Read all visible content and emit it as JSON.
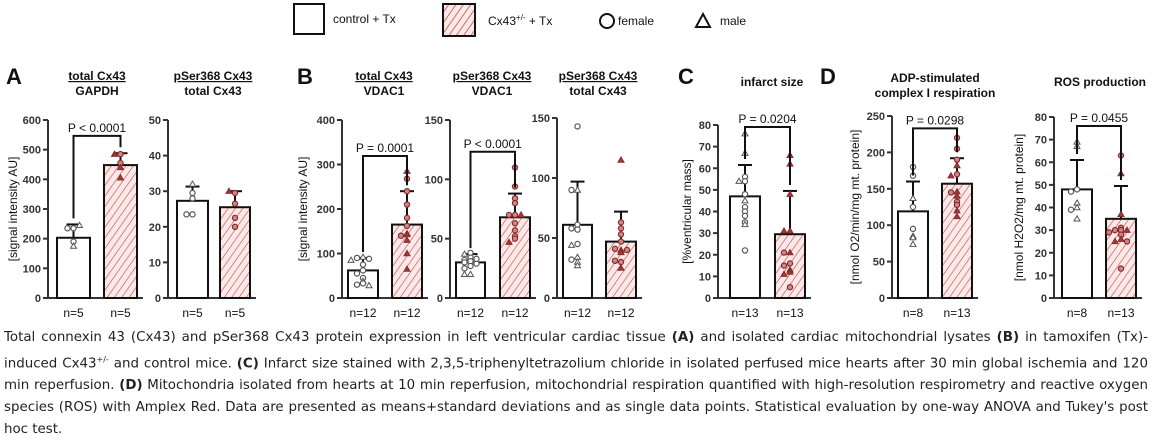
{
  "legend": {
    "items": [
      {
        "label": "control  + Tx",
        "symbol": "open-square"
      },
      {
        "label": "Cx43",
        "sup": "+/-",
        "suffix": " + Tx",
        "symbol": "hatched-square"
      },
      {
        "label": "female",
        "symbol": "circle"
      },
      {
        "label": "male",
        "symbol": "triangle"
      }
    ]
  },
  "colors": {
    "control_fill": "#ffffff",
    "cx43_fill": "#fbe9e9",
    "hatch": "#c0392b",
    "female_point_control": "#444444",
    "point_cx43": "#8b2a2a",
    "axis": "#333333"
  },
  "panel_letters": [
    "A",
    "B",
    "C",
    "D"
  ],
  "chart_data": [
    {
      "id": "A1",
      "panel": "A",
      "type": "bar",
      "title_numerator": "total Cx43",
      "title_denominator": "GAPDH",
      "ylabel": "[signal intensity AU]",
      "ylim": [
        0,
        600
      ],
      "yticks": [
        0,
        100,
        200,
        300,
        400,
        500,
        600
      ],
      "categories": [
        "control + Tx",
        "Cx43+/- + Tx"
      ],
      "means": [
        203,
        448
      ],
      "sd": [
        45,
        40
      ],
      "n_labels": [
        "n=5",
        "n=5"
      ],
      "significance": "P < 0.0001",
      "points": [
        [
          {
            "v": 235,
            "s": "c"
          },
          {
            "v": 235,
            "s": "c"
          },
          {
            "v": 190,
            "s": "c"
          },
          {
            "v": 175,
            "s": "t"
          },
          {
            "v": 245,
            "s": "t"
          }
        ],
        [
          {
            "v": 485,
            "s": "c"
          },
          {
            "v": 485,
            "s": "t"
          },
          {
            "v": 455,
            "s": "c"
          },
          {
            "v": 440,
            "s": "t"
          },
          {
            "v": 405,
            "s": "t"
          }
        ]
      ]
    },
    {
      "id": "A2",
      "panel": "A",
      "type": "bar",
      "title_numerator": "pSer368 Cx43",
      "title_denominator": "total Cx43",
      "ylabel": "",
      "ylim": [
        0,
        50
      ],
      "yticks": [
        0,
        10,
        20,
        30,
        40,
        50
      ],
      "categories": [
        "control + Tx",
        "Cx43+/- + Tx"
      ],
      "means": [
        27.3,
        25.5
      ],
      "sd": [
        4.0,
        4.5
      ],
      "n_labels": [
        "n=5",
        "n=5"
      ],
      "significance": "",
      "points": [
        [
          {
            "v": 32,
            "s": "t"
          },
          {
            "v": 29.5,
            "s": "c"
          },
          {
            "v": 23.5,
            "s": "c"
          },
          {
            "v": 23.5,
            "s": "c"
          },
          {
            "v": 28,
            "s": "c"
          }
        ],
        [
          {
            "v": 29.5,
            "s": "c"
          },
          {
            "v": 26.5,
            "s": "c"
          },
          {
            "v": 22.5,
            "s": "c"
          },
          {
            "v": 20,
            "s": "c"
          },
          {
            "v": 30,
            "s": "t"
          }
        ]
      ]
    },
    {
      "id": "B1",
      "panel": "B",
      "type": "bar",
      "title_numerator": "total Cx43",
      "title_denominator": "VDAC1",
      "ylabel": "[signal intensity AU]",
      "ylim": [
        0,
        400
      ],
      "yticks": [
        0,
        100,
        200,
        300,
        400
      ],
      "categories": [
        "control + Tx",
        "Cx43+/- + Tx"
      ],
      "means": [
        62,
        165
      ],
      "sd": [
        28,
        75
      ],
      "n_labels": [
        "n=12",
        "n=12"
      ],
      "significance": "P = 0.0001",
      "points": [
        [
          {
            "v": 92,
            "s": "t"
          },
          {
            "v": 90,
            "s": "c"
          },
          {
            "v": 88,
            "s": "c"
          },
          {
            "v": 85,
            "s": "t"
          },
          {
            "v": 75,
            "s": "c"
          },
          {
            "v": 62,
            "s": "c"
          },
          {
            "v": 55,
            "s": "c"
          },
          {
            "v": 45,
            "s": "c"
          },
          {
            "v": 38,
            "s": "t"
          },
          {
            "v": 33,
            "s": "c"
          },
          {
            "v": 30,
            "s": "c"
          },
          {
            "v": 28,
            "s": "t"
          }
        ],
        [
          {
            "v": 285,
            "s": "t"
          },
          {
            "v": 268,
            "s": "c"
          },
          {
            "v": 240,
            "s": "c"
          },
          {
            "v": 210,
            "s": "c"
          },
          {
            "v": 180,
            "s": "c"
          },
          {
            "v": 162,
            "s": "c"
          },
          {
            "v": 145,
            "s": "t"
          },
          {
            "v": 143,
            "s": "t"
          },
          {
            "v": 140,
            "s": "c"
          },
          {
            "v": 130,
            "s": "t"
          },
          {
            "v": 100,
            "s": "t"
          },
          {
            "v": 65,
            "s": "t"
          }
        ]
      ]
    },
    {
      "id": "B2",
      "panel": "B",
      "type": "bar",
      "title_numerator": "pSer368 Cx43",
      "title_denominator": "VDAC1",
      "ylabel": "",
      "ylim": [
        0,
        150
      ],
      "yticks": [
        0,
        50,
        100,
        150
      ],
      "categories": [
        "control + Tx",
        "Cx43+/- + Tx"
      ],
      "means": [
        30,
        68
      ],
      "sd": [
        7,
        20
      ],
      "n_labels": [
        "n=12",
        "n=12"
      ],
      "significance": "P < 0.0001",
      "points": [
        [
          {
            "v": 38,
            "s": "c"
          },
          {
            "v": 37,
            "s": "t"
          },
          {
            "v": 34,
            "s": "c"
          },
          {
            "v": 32,
            "s": "c"
          },
          {
            "v": 31,
            "s": "c"
          },
          {
            "v": 30,
            "s": "c"
          },
          {
            "v": 29,
            "s": "c"
          },
          {
            "v": 27,
            "s": "c"
          },
          {
            "v": 25,
            "s": "c"
          },
          {
            "v": 20,
            "s": "t"
          },
          {
            "v": 20,
            "s": "t"
          },
          {
            "v": 33,
            "s": "c"
          }
        ],
        [
          {
            "v": 110,
            "s": "c"
          },
          {
            "v": 94,
            "s": "c"
          },
          {
            "v": 84,
            "s": "c"
          },
          {
            "v": 80,
            "s": "c"
          },
          {
            "v": 70,
            "s": "c"
          },
          {
            "v": 70,
            "s": "c"
          },
          {
            "v": 70,
            "s": "t"
          },
          {
            "v": 63,
            "s": "c"
          },
          {
            "v": 57,
            "s": "c"
          },
          {
            "v": 52,
            "s": "c"
          },
          {
            "v": 50,
            "s": "c"
          },
          {
            "v": 47,
            "s": "t"
          }
        ]
      ]
    },
    {
      "id": "B3",
      "panel": "B",
      "type": "bar",
      "title_numerator": "pSer368 Cx43",
      "title_denominator": "total Cx43",
      "ylabel": "",
      "ylim": [
        0,
        150
      ],
      "yticks": [
        0,
        50,
        100,
        150
      ],
      "categories": [
        "control + Tx",
        "Cx43+/- + Tx"
      ],
      "means": [
        61,
        47
      ],
      "sd": [
        36,
        25
      ],
      "n_labels": [
        "n=12",
        "n=12"
      ],
      "significance": "",
      "points": [
        [
          {
            "v": 143,
            "s": "c"
          },
          {
            "v": 90,
            "s": "t"
          },
          {
            "v": 90,
            "s": "c"
          },
          {
            "v": 61,
            "s": "c"
          },
          {
            "v": 57,
            "s": "c"
          },
          {
            "v": 45,
            "s": "c"
          },
          {
            "v": 44,
            "s": "t"
          },
          {
            "v": 34,
            "s": "t"
          },
          {
            "v": 32,
            "s": "c"
          },
          {
            "v": 30,
            "s": "t"
          },
          {
            "v": 27,
            "s": "t"
          },
          {
            "v": 58,
            "s": "c"
          }
        ],
        [
          {
            "v": 115,
            "s": "t"
          },
          {
            "v": 63,
            "s": "c"
          },
          {
            "v": 58,
            "s": "c"
          },
          {
            "v": 53,
            "s": "c"
          },
          {
            "v": 40,
            "s": "t"
          },
          {
            "v": 41,
            "s": "c"
          },
          {
            "v": 40,
            "s": "c"
          },
          {
            "v": 38,
            "s": "t"
          },
          {
            "v": 30,
            "s": "c"
          },
          {
            "v": 31,
            "s": "c"
          },
          {
            "v": 25,
            "s": "t"
          },
          {
            "v": 47,
            "s": "c"
          }
        ]
      ]
    },
    {
      "id": "C",
      "panel": "C",
      "type": "bar",
      "title_numerator": "",
      "title_denominator": "infarct size",
      "ylabel": "[%ventricular mass]",
      "ylim": [
        0,
        80
      ],
      "yticks": [
        0,
        10,
        20,
        30,
        40,
        50,
        60,
        70,
        80
      ],
      "categories": [
        "control + Tx",
        "Cx43+/- + Tx"
      ],
      "means": [
        47,
        29.5
      ],
      "sd": [
        14.5,
        20
      ],
      "n_labels": [
        "n=13",
        "n=13"
      ],
      "significance": "P = 0.0204",
      "points": [
        [
          {
            "v": 76,
            "s": "t"
          },
          {
            "v": 67,
            "s": "t"
          },
          {
            "v": 56,
            "s": "c"
          },
          {
            "v": 54,
            "s": "c"
          },
          {
            "v": 54,
            "s": "t"
          },
          {
            "v": 48,
            "s": "c"
          },
          {
            "v": 45,
            "s": "t"
          },
          {
            "v": 42,
            "s": "c"
          },
          {
            "v": 40,
            "s": "c"
          },
          {
            "v": 38,
            "s": "c"
          },
          {
            "v": 35,
            "s": "c"
          },
          {
            "v": 34,
            "s": "t"
          },
          {
            "v": 22,
            "s": "c"
          }
        ],
        [
          {
            "v": 66,
            "s": "t"
          },
          {
            "v": 62,
            "s": "t"
          },
          {
            "v": 48,
            "s": "t"
          },
          {
            "v": 31,
            "s": "t"
          },
          {
            "v": 31,
            "s": "t"
          },
          {
            "v": 21,
            "s": "t"
          },
          {
            "v": 21,
            "s": "c"
          },
          {
            "v": 16,
            "s": "c"
          },
          {
            "v": 15,
            "s": "c"
          },
          {
            "v": 13,
            "s": "t"
          },
          {
            "v": 12,
            "s": "t"
          },
          {
            "v": 11,
            "s": "t"
          },
          {
            "v": 5,
            "s": "c"
          }
        ]
      ]
    },
    {
      "id": "D1",
      "panel": "D",
      "type": "bar",
      "title_numerator": "",
      "title_denominator": "ADP-stimulated complex I respiration",
      "title_lines": [
        "ADP-stimulated",
        "complex I respiration"
      ],
      "ylabel": "[nmol O2/min/mg mt. protein]",
      "ylim": [
        0,
        250
      ],
      "yticks": [
        0,
        50,
        100,
        150,
        200,
        250
      ],
      "categories": [
        "control + Tx",
        "Cx43+/- + Tx"
      ],
      "means": [
        119,
        157
      ],
      "sd": [
        41,
        35
      ],
      "n_labels": [
        "n=8",
        "n=13"
      ],
      "significance": "P = 0.0298",
      "points": [
        [
          {
            "v": 180,
            "s": "c"
          },
          {
            "v": 168,
            "s": "c"
          },
          {
            "v": 137,
            "s": "t"
          },
          {
            "v": 125,
            "s": "c"
          },
          {
            "v": 95,
            "s": "c"
          },
          {
            "v": 85,
            "s": "t"
          },
          {
            "v": 83,
            "s": "t"
          },
          {
            "v": 74,
            "s": "t"
          }
        ],
        [
          {
            "v": 220,
            "s": "c"
          },
          {
            "v": 205,
            "s": "c"
          },
          {
            "v": 190,
            "s": "c"
          },
          {
            "v": 182,
            "s": "t"
          },
          {
            "v": 170,
            "s": "c"
          },
          {
            "v": 168,
            "s": "t"
          },
          {
            "v": 146,
            "s": "t"
          },
          {
            "v": 145,
            "s": "c"
          },
          {
            "v": 140,
            "s": "t"
          },
          {
            "v": 132,
            "s": "c"
          },
          {
            "v": 128,
            "s": "c"
          },
          {
            "v": 120,
            "s": "t"
          },
          {
            "v": 112,
            "s": "t"
          }
        ]
      ]
    },
    {
      "id": "D2",
      "panel": "D",
      "type": "bar",
      "title_numerator": "",
      "title_denominator": "ROS production",
      "ylabel": "[nmol H2O2/mg mt. protein]",
      "ylim": [
        0,
        80
      ],
      "yticks": [
        0,
        10,
        20,
        30,
        40,
        50,
        60,
        70,
        80
      ],
      "categories": [
        "control + Tx",
        "Cx43+/- + Tx"
      ],
      "means": [
        48,
        35
      ],
      "sd": [
        13,
        14.5
      ],
      "n_labels": [
        "n=8",
        "n=13"
      ],
      "significance": "P = 0.0455",
      "points": [
        [
          {
            "v": 69,
            "s": "t"
          },
          {
            "v": 67,
            "s": "t"
          },
          {
            "v": 48,
            "s": "c"
          },
          {
            "v": 47,
            "s": "c"
          },
          {
            "v": 42,
            "s": "t"
          },
          {
            "v": 40,
            "s": "t"
          },
          {
            "v": 39,
            "s": "c"
          },
          {
            "v": 35,
            "s": "t"
          }
        ],
        [
          {
            "v": 63,
            "s": "c"
          },
          {
            "v": 55,
            "s": "t"
          },
          {
            "v": 37,
            "s": "t"
          },
          {
            "v": 31,
            "s": "c"
          },
          {
            "v": 30,
            "s": "c"
          },
          {
            "v": 30,
            "s": "c"
          },
          {
            "v": 30,
            "s": "t"
          },
          {
            "v": 29,
            "s": "c"
          },
          {
            "v": 28,
            "s": "c"
          },
          {
            "v": 26,
            "s": "t"
          },
          {
            "v": 25,
            "s": "t"
          },
          {
            "v": 25,
            "s": "c"
          },
          {
            "v": 13,
            "s": "c"
          }
        ]
      ]
    }
  ],
  "caption": {
    "segments": [
      {
        "t": "Total connexin 43 (Cx43) and pSer368 Cx43 protein expression in left ventricular cardiac tissue "
      },
      {
        "t": "(A)",
        "b": true
      },
      {
        "t": " and isolated cardiac mitochondrial lysates "
      },
      {
        "t": "(B)",
        "b": true
      },
      {
        "t": " in tamoxifen (Tx)-induced Cx43"
      },
      {
        "t": "+/-",
        "sup": true
      },
      {
        "t": " and control mice. "
      },
      {
        "t": "(C)",
        "b": true
      },
      {
        "t": " Infarct size stained with 2,3,5-triphenyltetrazolium chloride in isolated perfused mice hearts after 30 min global ischemia and 120 min reperfusion. "
      },
      {
        "t": "(D)",
        "b": true
      },
      {
        "t": " Mitochondria isolated from hearts at 10 min reperfusion, mitochondrial respiration quantified with high-resolution respirometry and reactive oxygen species (ROS) with Amplex Red. Data are presented as means+standard deviations and as single data points. Statistical evaluation by one-way ANOVA and Tukey's post hoc test."
      }
    ]
  }
}
